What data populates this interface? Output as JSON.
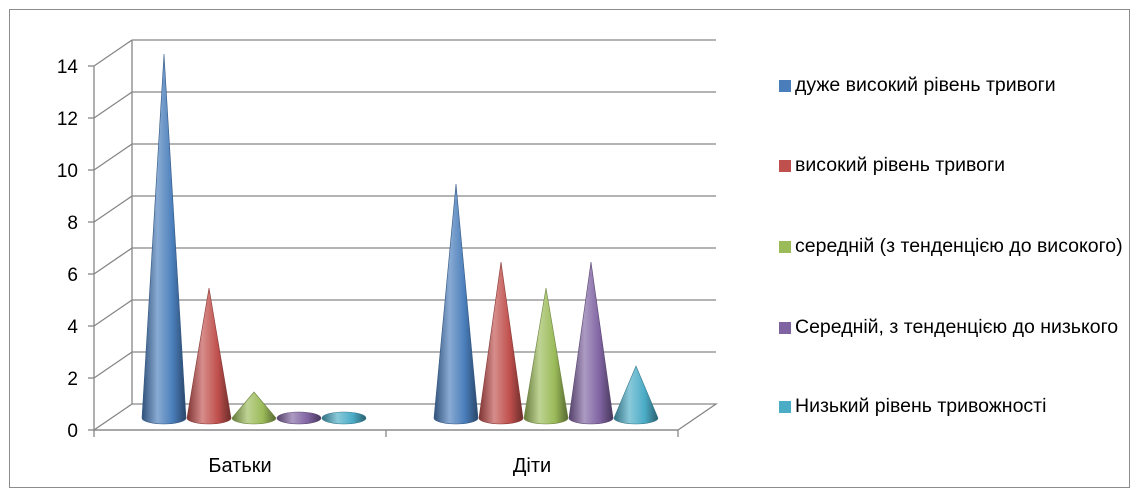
{
  "chart_data": {
    "type": "bar",
    "shape": "cone-3d",
    "categories": [
      "Батьки",
      "Діти"
    ],
    "series": [
      {
        "name": "дуже високий рівень тривоги",
        "color": "#4a7ebb",
        "values": [
          14,
          9
        ]
      },
      {
        "name": "високий рівень тривоги",
        "color": "#c0504d",
        "values": [
          5,
          6
        ]
      },
      {
        "name": "середній (з тенденцією до високого)",
        "color": "#9bbb59",
        "values": [
          1,
          5
        ]
      },
      {
        "name": "Середній, з тенденцією до низького",
        "color": "#8064a2",
        "values": [
          0,
          6
        ]
      },
      {
        "name": "Низький рівень тривожності",
        "color": "#4bacc6",
        "values": [
          0,
          2
        ]
      }
    ],
    "y_ticks": [
      "0",
      "2",
      "4",
      "6",
      "8",
      "10",
      "12",
      "14"
    ],
    "ylim": [
      0,
      14
    ],
    "grid": true,
    "legend_position": "right"
  }
}
